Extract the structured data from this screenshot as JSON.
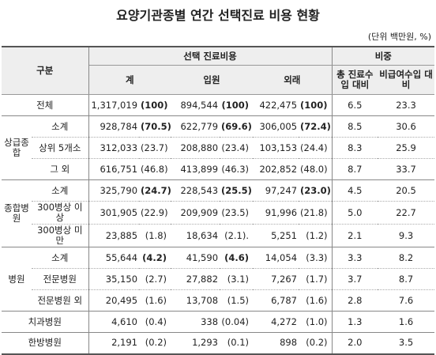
{
  "header": {
    "title": "요양기관종별 연간 선택진료 비용 현황",
    "unit": "(단위 백만원, %)"
  },
  "table": {
    "header": {
      "group": "구분",
      "selective": "선택 진료비용",
      "columns": [
        "계",
        "입원",
        "외래"
      ],
      "share": "비중",
      "share_columns": [
        "총 진료수입 대비",
        "비급여수입 대비"
      ]
    },
    "rows": [
      {
        "label": "전체",
        "values": [
          "1,317,019",
          "(100)",
          "894,544",
          "(100)",
          "422,475",
          "(100)",
          "6.5",
          "23.3"
        ],
        "bold": [
          1,
          3,
          5
        ]
      },
      {
        "group": "상급종합",
        "items": [
          {
            "label": "소계",
            "values": [
              "928,784",
              "(70.5)",
              "622,779",
              "(69.6)",
              "306,005",
              "(72.4)",
              "8.5",
              "30.6"
            ],
            "bold": [
              1,
              3,
              5
            ]
          },
          {
            "label": "상위 5개소",
            "values": [
              "312,033",
              "(23.7)",
              "208,880",
              "(23.4)",
              "103,153",
              "(24.4)",
              "8.3",
              "25.9"
            ],
            "bold": []
          },
          {
            "label": "그 외",
            "values": [
              "616,751",
              "(46.8)",
              "413,899",
              "(46.3)",
              "202,852",
              "(48.0)",
              "8.7",
              "33.7"
            ],
            "bold": []
          }
        ]
      },
      {
        "group": "종합병원",
        "items": [
          {
            "label": "소계",
            "values": [
              "325,790",
              "(24.7)",
              "228,543",
              "(25.5)",
              "97,247",
              "(23.0)",
              "4.5",
              "20.5"
            ],
            "bold": [
              1,
              3,
              5
            ]
          },
          {
            "label": "300병상 이상",
            "values": [
              "301,905",
              "(22.9)",
              "209,909",
              "(23.5)",
              "91,996",
              "(21.8)",
              "5.0",
              "22.7"
            ],
            "bold": []
          },
          {
            "label": "300병상 미만",
            "values": [
              "23,885",
              "(1.8)",
              "18,634",
              "(2.1).",
              "5,251",
              "(1.2)",
              "2.1",
              "9.3"
            ],
            "bold": []
          }
        ]
      },
      {
        "group": "병원",
        "items": [
          {
            "label": "소계",
            "values": [
              "55,644",
              "(4.2)",
              "41,590",
              "(4.6)",
              "14,054",
              "(3.3)",
              "3.3",
              "8.2"
            ],
            "bold": [
              1,
              3
            ]
          },
          {
            "label": "전문병원",
            "values": [
              "35,150",
              "(2.7)",
              "27,882",
              "(3.1)",
              "7,267",
              "(1.7)",
              "3.7",
              "8.7"
            ],
            "bold": []
          },
          {
            "label": "전문병원 외",
            "values": [
              "20,495",
              "(1.6)",
              "13,708",
              "(1.5)",
              "6,787",
              "(1.6)",
              "2.8",
              "7.6"
            ],
            "bold": []
          }
        ]
      },
      {
        "label": "치과병원",
        "values": [
          "4,610",
          "(0.4)",
          "338",
          "(0.04)",
          "4,272",
          "(1.0)",
          "1.3",
          "1.6"
        ],
        "bold": []
      },
      {
        "label": "한방병원",
        "values": [
          "2,191",
          "(0.2)",
          "1,293",
          "(0.1)",
          "898",
          "(0.2)",
          "2.0",
          "3.5"
        ],
        "bold": []
      }
    ]
  }
}
